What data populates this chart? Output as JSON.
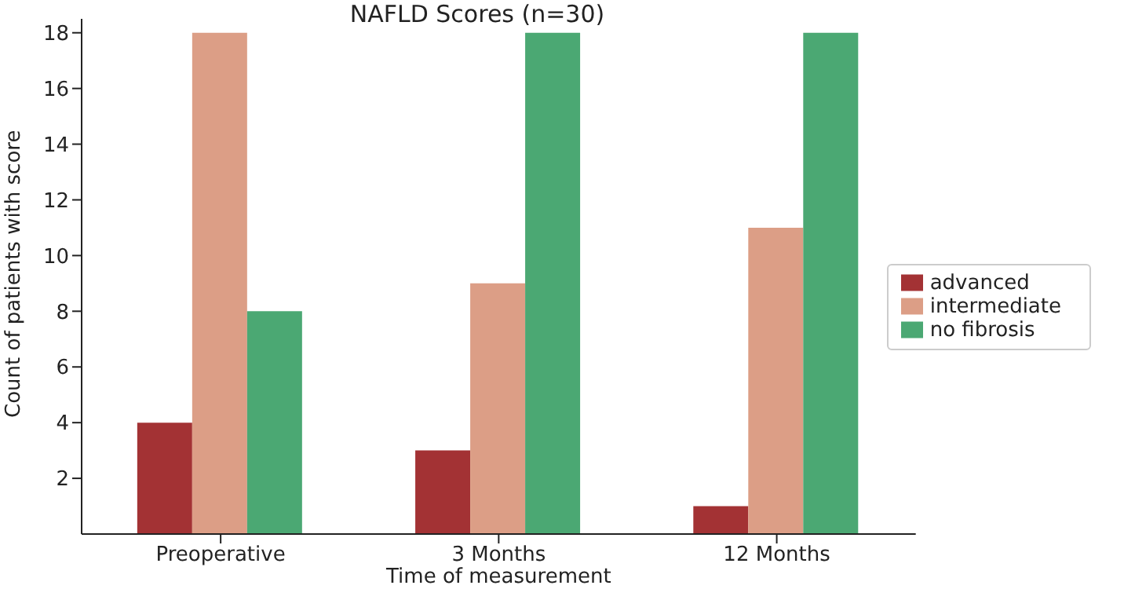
{
  "chart_data": {
    "type": "bar",
    "title": "NAFLD Scores (n=30)",
    "xlabel": "Time of measurement",
    "ylabel": "Count of patients with score",
    "categories": [
      "Preoperative",
      "3 Months",
      "12 Months"
    ],
    "series": [
      {
        "name": "advanced",
        "color": "#a33234",
        "values": [
          4,
          3,
          1
        ]
      },
      {
        "name": "intermediate",
        "color": "#dc9e86",
        "values": [
          18,
          9,
          11
        ]
      },
      {
        "name": "no fibrosis",
        "color": "#4ba873",
        "values": [
          8,
          18,
          18
        ]
      }
    ],
    "ylim": [
      0,
      18.5
    ],
    "yticks": [
      2,
      4,
      6,
      8,
      10,
      12,
      14,
      16,
      18
    ],
    "grid": false,
    "legend": "right"
  }
}
